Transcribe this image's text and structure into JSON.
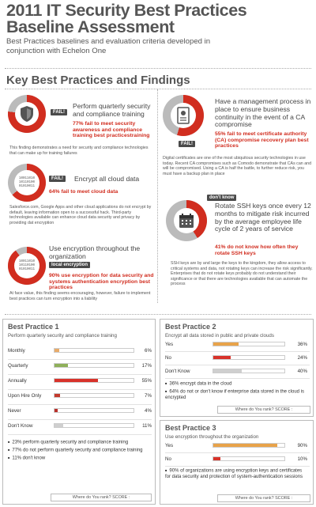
{
  "header": {
    "title_line1": "2011 IT Security Best Practices",
    "title_line2": "Baseline Assessment",
    "subtitle": "Best Practices baselines and evaluation criteria developed in conjunction with Echelon One"
  },
  "key_heading": "Key Best Practices and Findings",
  "findings": [
    {
      "tag": "FAIL!",
      "icon": "shield-icon",
      "title": "Perform quarterly security and compliance training",
      "stat": "77% fail to meet security awareness and compliance training best practicestraining",
      "body": "This finding demonstrates a need for security and compliance technologies that can make up for training failures"
    },
    {
      "tag": "FAIL!",
      "icon": "binary-icon",
      "icon_text": "10011010 10110100 01010011",
      "title": "Encrypt all cloud data",
      "stat": "64% fail to meet cloud data",
      "body": "Salesforce.com, Google Apps and other cloud applications do not encrypt by default, leaving information open to a successful hack. Third-party technologies available can enhance cloud data security and privacy by providing dat encryption"
    },
    {
      "tag": "local encryption",
      "icon": "binary-icon",
      "icon_text": "10011010 10110100 01010011",
      "title": "Use encryption throughout the organization",
      "stat": "90% use encryption for data security and systems authentication encryption best practices",
      "body": "At face value, this finding seems encouraging, however, failure to implement best practices can turn encryption into a liability"
    },
    {
      "tag": "FAIL!",
      "icon": "certificate-icon",
      "title": "Have a management process in place to ensure business continuity in the event of a CA compromise",
      "stat": "55% fail to meet certificate authority (CA) compromise recovery plan best practices",
      "body": "Digital certificates are one of the most ubiquitous security technologies in use today. Recent CA compromises such as Comodo demonstrate that CAs can and will be compromised. Using a CA is half the battle, to further reduce risk, you must have a backup plan in place"
    },
    {
      "tag": "don't know",
      "icon": "calendar-icon",
      "title": "Rotate SSH keys once every 12 months to mitigate risk incurred by the average employee life cycle of  2 years of service",
      "stat": "41% do not know how often they rotate SSH keys",
      "body": "SSH keys are by and large the keys to the kingdom, they allow access to critical systems and data, not rotating keys can increase the risk significantly. Enterprises that do not rotate keys probably do not understand their significance or that there are technologies available that can automate the process"
    }
  ],
  "best_practices": [
    {
      "title": "Best Practice 1",
      "subtitle": "Perform quarterly security and compliance training",
      "rows": [
        {
          "label": "Monthly",
          "pct": "6%",
          "value": 6,
          "color": "#e8ab6a"
        },
        {
          "label": "Quarterly",
          "pct": "17%",
          "value": 17,
          "color": "#8fb05a"
        },
        {
          "label": "Annually",
          "pct": "55%",
          "value": 55,
          "color": "#d8322a"
        },
        {
          "label": "Upon Hire Only",
          "pct": "7%",
          "value": 7,
          "color": "#c33a2d"
        },
        {
          "label": "Never",
          "pct": "4%",
          "value": 4,
          "color": "#b8302a"
        },
        {
          "label": "Don't Know",
          "pct": "11%",
          "value": 11,
          "color": "#cfcfcf"
        }
      ],
      "bullets": [
        "23% perform quarterly security and compliance training",
        "77% do not perform quarterly security and compliance training",
        "11% don't know"
      ],
      "rank_label": "Where do You rank? SCORE :"
    },
    {
      "title": "Best Practice 2",
      "subtitle": "Encrypt all data stored in public and private clouds",
      "rows": [
        {
          "label": "Yes",
          "pct": "36%",
          "value": 36,
          "color": "#e8a34a"
        },
        {
          "label": "No",
          "pct": "24%",
          "value": 24,
          "color": "#d8322a"
        },
        {
          "label": "Don't Know",
          "pct": "40%",
          "value": 40,
          "color": "#cfcfcf"
        }
      ],
      "bullets": [
        "36% encrypt data in the cloud",
        "64% do not or don't know if enterprise data stored in the cloud is encrypted"
      ],
      "rank_label": "Where do You rank? SCORE :"
    },
    {
      "title": "Best Practice 3",
      "subtitle": "Use encryption throughout the organization",
      "rows": [
        {
          "label": "Yes",
          "pct": "90%",
          "value": 90,
          "color": "#e8a34a"
        },
        {
          "label": "No",
          "pct": "10%",
          "value": 10,
          "color": "#d8322a"
        }
      ],
      "bullets": [
        "90% of organizations are using encryption keys and certificates for data security and protection of system-authentication sessions"
      ],
      "rank_label": "Where do You rank? SCORE :"
    }
  ],
  "colors": {
    "accent_red": "#d12d1f",
    "ring_grey": "#bbbbbb",
    "tag_dark": "#4a4a4a"
  }
}
